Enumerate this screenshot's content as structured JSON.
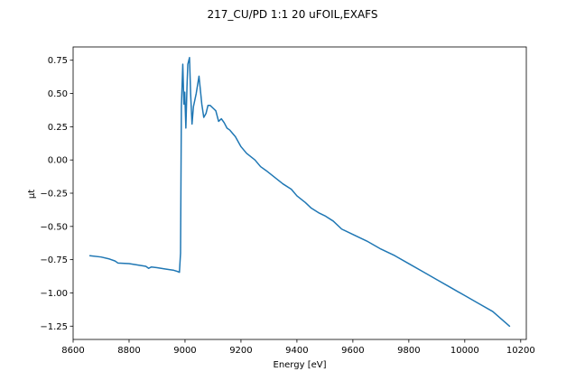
{
  "chart_data": {
    "type": "line",
    "title": "217_CU/PD 1:1 20 uFOIL,EXAFS",
    "xlabel": "Energy [eV]",
    "ylabel": "µt",
    "xlim": [
      8600,
      10220
    ],
    "ylim": [
      -1.35,
      0.85
    ],
    "grid": false,
    "legend": "none",
    "x_ticks": [
      8600,
      8800,
      9000,
      9200,
      9400,
      9600,
      9800,
      10000,
      10200
    ],
    "x_tick_labels": [
      "8600",
      "8800",
      "9000",
      "9200",
      "9400",
      "9600",
      "9800",
      "10000",
      "10200"
    ],
    "y_ticks": [
      0.75,
      0.5,
      0.25,
      0.0,
      -0.25,
      -0.5,
      -0.75,
      -1.0,
      -1.25
    ],
    "y_tick_labels": [
      "0.75",
      "0.50",
      "0.25",
      "0.00",
      "−0.25",
      "−0.50",
      "−0.75",
      "−1.00",
      "−1.25"
    ],
    "series": [
      {
        "color": "#1f77b4",
        "x": [
          8660,
          8700,
          8730,
          8750,
          8760,
          8800,
          8830,
          8860,
          8870,
          8880,
          8900,
          8930,
          8960,
          8975,
          8980,
          8984,
          8987,
          8992,
          8996,
          8999,
          9003,
          9007,
          9010,
          9016,
          9020,
          9025,
          9030,
          9040,
          9050,
          9060,
          9067,
          9075,
          9082,
          9090,
          9100,
          9110,
          9120,
          9130,
          9140,
          9150,
          9160,
          9170,
          9180,
          9200,
          9220,
          9250,
          9270,
          9290,
          9320,
          9350,
          9380,
          9400,
          9430,
          9450,
          9480,
          9500,
          9530,
          9560,
          9600,
          9650,
          9700,
          9750,
          9800,
          9850,
          9900,
          9950,
          10000,
          10050,
          10100,
          10160
        ],
        "y": [
          -0.72,
          -0.73,
          -0.745,
          -0.76,
          -0.775,
          -0.78,
          -0.79,
          -0.8,
          -0.815,
          -0.805,
          -0.81,
          -0.82,
          -0.83,
          -0.84,
          -0.845,
          -0.7,
          0.4,
          0.72,
          0.42,
          0.51,
          0.24,
          0.55,
          0.72,
          0.77,
          0.5,
          0.27,
          0.4,
          0.5,
          0.63,
          0.42,
          0.32,
          0.35,
          0.41,
          0.41,
          0.39,
          0.37,
          0.29,
          0.31,
          0.28,
          0.24,
          0.225,
          0.2,
          0.175,
          0.1,
          0.05,
          0.0,
          -0.05,
          -0.08,
          -0.13,
          -0.18,
          -0.22,
          -0.27,
          -0.32,
          -0.36,
          -0.4,
          -0.42,
          -0.46,
          -0.52,
          -0.56,
          -0.61,
          -0.67,
          -0.72,
          -0.78,
          -0.84,
          -0.9,
          -0.96,
          -1.02,
          -1.08,
          -1.14,
          -1.25
        ]
      }
    ]
  }
}
